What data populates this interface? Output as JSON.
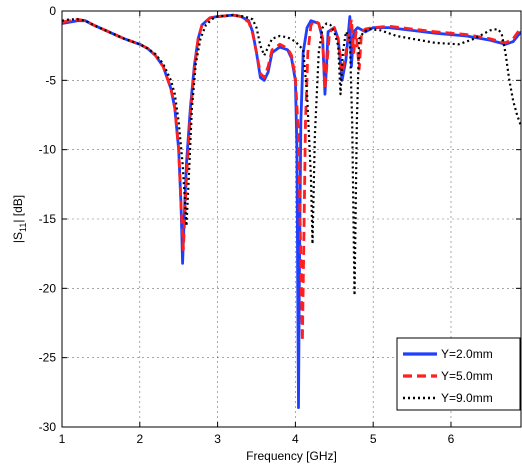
{
  "chart_data": {
    "type": "line",
    "xlabel": "Frequency [GHz]",
    "ylabel_main": "|S",
    "ylabel_sub": "11",
    "ylabel_tail": "| [dB]",
    "xlim": [
      1,
      6.9
    ],
    "ylim": [
      -30,
      0
    ],
    "x_ticks": [
      1,
      2,
      3,
      4,
      5,
      6
    ],
    "y_ticks": [
      0,
      -5,
      -10,
      -15,
      -20,
      -25,
      -30
    ],
    "grid": true,
    "legend_position": "bottom-right",
    "series": [
      {
        "name": "Y=2.0mm",
        "color": "#1f3fff",
        "style": "solid",
        "points": [
          [
            1.0,
            -0.9
          ],
          [
            1.1,
            -0.8
          ],
          [
            1.2,
            -0.7
          ],
          [
            1.3,
            -0.7
          ],
          [
            1.4,
            -1.0
          ],
          [
            1.6,
            -1.5
          ],
          [
            1.8,
            -2.0
          ],
          [
            2.0,
            -2.4
          ],
          [
            2.1,
            -2.7
          ],
          [
            2.2,
            -3.2
          ],
          [
            2.3,
            -4.0
          ],
          [
            2.4,
            -5.6
          ],
          [
            2.45,
            -7.0
          ],
          [
            2.5,
            -10.0
          ],
          [
            2.53,
            -14.0
          ],
          [
            2.55,
            -18.2
          ],
          [
            2.57,
            -15.0
          ],
          [
            2.6,
            -11.0
          ],
          [
            2.65,
            -7.0
          ],
          [
            2.7,
            -4.0
          ],
          [
            2.75,
            -2.0
          ],
          [
            2.8,
            -1.0
          ],
          [
            2.9,
            -0.5
          ],
          [
            3.0,
            -0.4
          ],
          [
            3.2,
            -0.3
          ],
          [
            3.3,
            -0.4
          ],
          [
            3.4,
            -0.7
          ],
          [
            3.45,
            -1.5
          ],
          [
            3.5,
            -3.0
          ],
          [
            3.55,
            -4.8
          ],
          [
            3.6,
            -5.0
          ],
          [
            3.65,
            -4.4
          ],
          [
            3.7,
            -3.0
          ],
          [
            3.8,
            -2.6
          ],
          [
            3.9,
            -2.8
          ],
          [
            3.95,
            -3.4
          ],
          [
            4.0,
            -5.0
          ],
          [
            4.02,
            -10.0
          ],
          [
            4.03,
            -20.0
          ],
          [
            4.04,
            -28.6
          ],
          [
            4.05,
            -20.0
          ],
          [
            4.07,
            -8.0
          ],
          [
            4.1,
            -3.0
          ],
          [
            4.15,
            -1.2
          ],
          [
            4.2,
            -0.7
          ],
          [
            4.3,
            -0.9
          ],
          [
            4.35,
            -2.0
          ],
          [
            4.38,
            -6.0
          ],
          [
            4.4,
            -4.0
          ],
          [
            4.42,
            -1.5
          ],
          [
            4.5,
            -1.2
          ],
          [
            4.55,
            -2.0
          ],
          [
            4.6,
            -5.0
          ],
          [
            4.65,
            -3.5
          ],
          [
            4.7,
            -0.4
          ],
          [
            4.72,
            -4.0
          ],
          [
            4.75,
            -1.5
          ],
          [
            4.8,
            -1.2
          ],
          [
            4.9,
            -1.5
          ],
          [
            5.0,
            -1.2
          ],
          [
            5.2,
            -1.2
          ],
          [
            5.5,
            -1.4
          ],
          [
            5.8,
            -1.6
          ],
          [
            6.2,
            -1.8
          ],
          [
            6.5,
            -2.1
          ],
          [
            6.7,
            -2.4
          ],
          [
            6.8,
            -2.2
          ],
          [
            6.9,
            -1.5
          ]
        ]
      },
      {
        "name": "Y=5.0mm",
        "color": "#ff1f1f",
        "style": "dashed",
        "points": [
          [
            1.0,
            -0.8
          ],
          [
            1.1,
            -0.7
          ],
          [
            1.2,
            -0.6
          ],
          [
            1.3,
            -0.7
          ],
          [
            1.4,
            -1.0
          ],
          [
            1.6,
            -1.5
          ],
          [
            1.8,
            -2.0
          ],
          [
            2.0,
            -2.4
          ],
          [
            2.1,
            -2.7
          ],
          [
            2.2,
            -3.2
          ],
          [
            2.3,
            -4.0
          ],
          [
            2.4,
            -5.6
          ],
          [
            2.45,
            -7.0
          ],
          [
            2.5,
            -10.0
          ],
          [
            2.53,
            -14.0
          ],
          [
            2.56,
            -17.2
          ],
          [
            2.6,
            -12.0
          ],
          [
            2.65,
            -7.5
          ],
          [
            2.7,
            -4.2
          ],
          [
            2.75,
            -2.0
          ],
          [
            2.8,
            -1.0
          ],
          [
            2.9,
            -0.5
          ],
          [
            3.0,
            -0.4
          ],
          [
            3.2,
            -0.3
          ],
          [
            3.3,
            -0.4
          ],
          [
            3.4,
            -0.8
          ],
          [
            3.45,
            -1.6
          ],
          [
            3.5,
            -3.0
          ],
          [
            3.55,
            -4.5
          ],
          [
            3.6,
            -4.8
          ],
          [
            3.65,
            -4.0
          ],
          [
            3.7,
            -2.8
          ],
          [
            3.8,
            -2.4
          ],
          [
            3.9,
            -2.7
          ],
          [
            3.95,
            -3.2
          ],
          [
            4.0,
            -4.8
          ],
          [
            4.04,
            -9.0
          ],
          [
            4.07,
            -18.0
          ],
          [
            4.09,
            -23.8
          ],
          [
            4.11,
            -16.0
          ],
          [
            4.13,
            -8.0
          ],
          [
            4.16,
            -3.0
          ],
          [
            4.2,
            -1.0
          ],
          [
            4.25,
            -0.7
          ],
          [
            4.3,
            -0.9
          ],
          [
            4.35,
            -2.0
          ],
          [
            4.38,
            -5.6
          ],
          [
            4.41,
            -3.5
          ],
          [
            4.44,
            -1.5
          ],
          [
            4.5,
            -1.2
          ],
          [
            4.55,
            -2.0
          ],
          [
            4.6,
            -4.5
          ],
          [
            4.65,
            -3.0
          ],
          [
            4.72,
            -0.6
          ],
          [
            4.75,
            -3.0
          ],
          [
            4.78,
            -1.5
          ],
          [
            4.82,
            -4.2
          ],
          [
            4.85,
            -1.5
          ],
          [
            4.9,
            -1.3
          ],
          [
            5.0,
            -1.2
          ],
          [
            5.2,
            -1.1
          ],
          [
            5.5,
            -1.3
          ],
          [
            5.8,
            -1.5
          ],
          [
            6.2,
            -1.7
          ],
          [
            6.5,
            -2.0
          ],
          [
            6.7,
            -2.3
          ],
          [
            6.8,
            -2.0
          ],
          [
            6.9,
            -1.2
          ]
        ]
      },
      {
        "name": "Y=9.0mm",
        "color": "#000000",
        "style": "dotted",
        "points": [
          [
            1.0,
            -0.7
          ],
          [
            1.1,
            -0.6
          ],
          [
            1.2,
            -0.6
          ],
          [
            1.3,
            -0.7
          ],
          [
            1.4,
            -1.0
          ],
          [
            1.6,
            -1.5
          ],
          [
            1.8,
            -2.0
          ],
          [
            2.0,
            -2.4
          ],
          [
            2.1,
            -2.7
          ],
          [
            2.2,
            -3.1
          ],
          [
            2.3,
            -3.8
          ],
          [
            2.4,
            -5.0
          ],
          [
            2.45,
            -6.0
          ],
          [
            2.5,
            -8.0
          ],
          [
            2.55,
            -11.0
          ],
          [
            2.6,
            -15.5
          ],
          [
            2.63,
            -12.0
          ],
          [
            2.67,
            -7.0
          ],
          [
            2.72,
            -3.8
          ],
          [
            2.78,
            -2.0
          ],
          [
            2.85,
            -1.0
          ],
          [
            2.95,
            -0.5
          ],
          [
            3.0,
            -0.4
          ],
          [
            3.2,
            -0.3
          ],
          [
            3.35,
            -0.4
          ],
          [
            3.45,
            -0.6
          ],
          [
            3.5,
            -1.2
          ],
          [
            3.55,
            -2.5
          ],
          [
            3.6,
            -3.2
          ],
          [
            3.65,
            -2.6
          ],
          [
            3.7,
            -2.0
          ],
          [
            3.8,
            -1.8
          ],
          [
            3.9,
            -1.9
          ],
          [
            4.0,
            -2.2
          ],
          [
            4.1,
            -2.8
          ],
          [
            4.15,
            -6.0
          ],
          [
            4.2,
            -12.0
          ],
          [
            4.22,
            -16.8
          ],
          [
            4.25,
            -9.0
          ],
          [
            4.3,
            -3.0
          ],
          [
            4.35,
            -1.2
          ],
          [
            4.4,
            -0.9
          ],
          [
            4.45,
            -1.0
          ],
          [
            4.5,
            -1.5
          ],
          [
            4.55,
            -2.5
          ],
          [
            4.58,
            -6.0
          ],
          [
            4.61,
            -3.0
          ],
          [
            4.65,
            -1.5
          ],
          [
            4.7,
            -2.0
          ],
          [
            4.73,
            -8.0
          ],
          [
            4.76,
            -20.5
          ],
          [
            4.79,
            -8.0
          ],
          [
            4.82,
            -2.0
          ],
          [
            4.88,
            -1.5
          ],
          [
            4.95,
            -1.3
          ],
          [
            5.1,
            -1.4
          ],
          [
            5.3,
            -1.8
          ],
          [
            5.5,
            -2.0
          ],
          [
            5.8,
            -2.3
          ],
          [
            6.1,
            -2.4
          ],
          [
            6.3,
            -2.0
          ],
          [
            6.5,
            -1.4
          ],
          [
            6.6,
            -1.3
          ],
          [
            6.65,
            -1.6
          ],
          [
            6.7,
            -3.0
          ],
          [
            6.75,
            -5.0
          ],
          [
            6.8,
            -6.5
          ],
          [
            6.85,
            -7.5
          ],
          [
            6.9,
            -8.3
          ]
        ]
      }
    ]
  }
}
